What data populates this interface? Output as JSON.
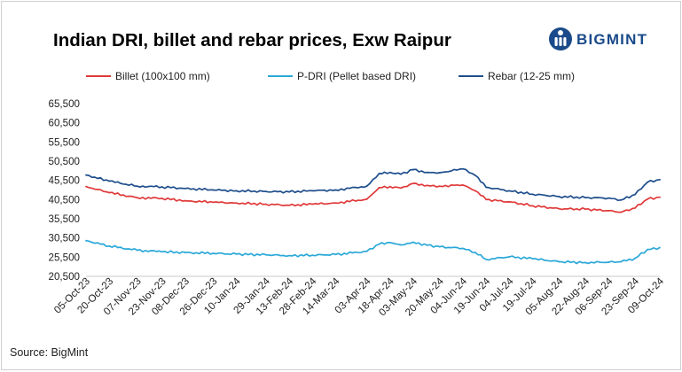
{
  "header": {
    "title": "Indian DRI, billet and rebar prices, Exw Raipur",
    "brand_name": "BIGMINT",
    "brand_icon": "bigmint-logo-icon",
    "brand_color": "#1a4a8a"
  },
  "footer": {
    "source": "Source: BigMint"
  },
  "chart_data": {
    "type": "line",
    "title": "Indian DRI, billet and rebar prices, Exw Raipur",
    "xlabel": "",
    "ylabel": "",
    "ylim": [
      20500,
      65500
    ],
    "yticks": [
      20500,
      25500,
      30500,
      35500,
      40500,
      45500,
      50500,
      55500,
      60500,
      65500
    ],
    "ytick_labels": [
      "20,500",
      "25,500",
      "30,500",
      "35,500",
      "40,500",
      "45,500",
      "50,500",
      "55,500",
      "60,500",
      "65,500"
    ],
    "xtick_labels": [
      "05-Oct-23",
      "20-Oct-23",
      "07-Nov-23",
      "23-Nov-23",
      "08-Dec-23",
      "26-Dec-23",
      "10-Jan-24",
      "29-Jan-24",
      "13-Feb-24",
      "28-Feb-24",
      "14-Mar-24",
      "03-Apr-24",
      "18-Apr-24",
      "03-May-24",
      "20-May-24",
      "04-Jun-24",
      "19-Jun-24",
      "04-Jul-24",
      "19-Jul-24",
      "05-Aug-24",
      "22-Aug-24",
      "06-Sep-24",
      "23-Sep-24",
      "09-Oct-24"
    ],
    "grid": false,
    "legend_position": "top",
    "series": [
      {
        "name": "Billet (100x100 mm)",
        "color": "#e03a3a",
        "points": [
          [
            "05-Oct-23",
            43900
          ],
          [
            "20-Oct-23",
            42300
          ],
          [
            "07-Nov-23",
            41000
          ],
          [
            "23-Nov-23",
            40800
          ],
          [
            "08-Dec-23",
            40200
          ],
          [
            "26-Dec-23",
            39800
          ],
          [
            "10-Jan-24",
            39600
          ],
          [
            "29-Jan-24",
            39300
          ],
          [
            "13-Feb-24",
            39000
          ],
          [
            "28-Feb-24",
            39300
          ],
          [
            "14-Mar-24",
            39600
          ],
          [
            "03-Apr-24",
            40600
          ],
          [
            "11-Apr-24",
            43600
          ],
          [
            "18-Apr-24",
            43900
          ],
          [
            "25-Apr-24",
            43500
          ],
          [
            "03-May-24",
            44700
          ],
          [
            "12-May-24",
            44200
          ],
          [
            "20-May-24",
            44000
          ],
          [
            "04-Jun-24",
            44300
          ],
          [
            "12-Jun-24",
            42800
          ],
          [
            "19-Jun-24",
            40500
          ],
          [
            "04-Jul-24",
            39900
          ],
          [
            "19-Jul-24",
            38900
          ],
          [
            "05-Aug-24",
            38100
          ],
          [
            "22-Aug-24",
            38000
          ],
          [
            "06-Sep-24",
            37600
          ],
          [
            "14-Sep-24",
            37200
          ],
          [
            "23-Sep-24",
            38300
          ],
          [
            "01-Oct-24",
            40600
          ],
          [
            "09-Oct-24",
            41100
          ]
        ]
      },
      {
        "name": "P-DRI (Pellet based DRI)",
        "color": "#2aa8d8",
        "points": [
          [
            "05-Oct-23",
            29800
          ],
          [
            "20-Oct-23",
            28400
          ],
          [
            "07-Nov-23",
            27300
          ],
          [
            "23-Nov-23",
            26900
          ],
          [
            "08-Dec-23",
            26700
          ],
          [
            "26-Dec-23",
            26500
          ],
          [
            "10-Jan-24",
            26300
          ],
          [
            "29-Jan-24",
            26100
          ],
          [
            "13-Feb-24",
            25900
          ],
          [
            "28-Feb-24",
            26000
          ],
          [
            "14-Mar-24",
            26200
          ],
          [
            "03-Apr-24",
            27000
          ],
          [
            "11-Apr-24",
            28900
          ],
          [
            "18-Apr-24",
            29300
          ],
          [
            "25-Apr-24",
            28700
          ],
          [
            "03-May-24",
            29400
          ],
          [
            "12-May-24",
            28600
          ],
          [
            "20-May-24",
            28200
          ],
          [
            "04-Jun-24",
            27800
          ],
          [
            "12-Jun-24",
            26700
          ],
          [
            "19-Jun-24",
            24900
          ],
          [
            "04-Jul-24",
            25600
          ],
          [
            "19-Jul-24",
            25100
          ],
          [
            "05-Aug-24",
            24300
          ],
          [
            "22-Aug-24",
            24100
          ],
          [
            "06-Sep-24",
            24200
          ],
          [
            "14-Sep-24",
            24300
          ],
          [
            "23-Sep-24",
            25200
          ],
          [
            "01-Oct-24",
            27500
          ],
          [
            "09-Oct-24",
            28000
          ]
        ]
      },
      {
        "name": "Rebar (12-25 mm)",
        "color": "#1f4e8c",
        "points": [
          [
            "05-Oct-23",
            46900
          ],
          [
            "20-Oct-23",
            45300
          ],
          [
            "07-Nov-23",
            44000
          ],
          [
            "23-Nov-23",
            43800
          ],
          [
            "08-Dec-23",
            43400
          ],
          [
            "26-Dec-23",
            43000
          ],
          [
            "10-Jan-24",
            42800
          ],
          [
            "29-Jan-24",
            42600
          ],
          [
            "13-Feb-24",
            42500
          ],
          [
            "28-Feb-24",
            42800
          ],
          [
            "14-Mar-24",
            43000
          ],
          [
            "03-Apr-24",
            44000
          ],
          [
            "11-Apr-24",
            47300
          ],
          [
            "18-Apr-24",
            47600
          ],
          [
            "25-Apr-24",
            47100
          ],
          [
            "03-May-24",
            48300
          ],
          [
            "12-May-24",
            47600
          ],
          [
            "20-May-24",
            47500
          ],
          [
            "04-Jun-24",
            48500
          ],
          [
            "12-Jun-24",
            46800
          ],
          [
            "19-Jun-24",
            43700
          ],
          [
            "04-Jul-24",
            42800
          ],
          [
            "19-Jul-24",
            41900
          ],
          [
            "05-Aug-24",
            41300
          ],
          [
            "22-Aug-24",
            41000
          ],
          [
            "06-Sep-24",
            40900
          ],
          [
            "14-Sep-24",
            40400
          ],
          [
            "23-Sep-24",
            41800
          ],
          [
            "01-Oct-24",
            45000
          ],
          [
            "09-Oct-24",
            45700
          ]
        ]
      }
    ]
  }
}
